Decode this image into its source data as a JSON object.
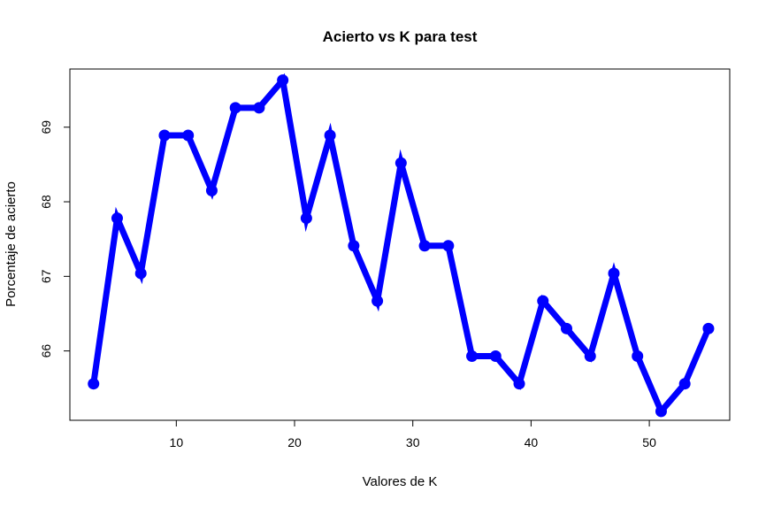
{
  "chart_data": {
    "type": "line",
    "title": "Acierto vs K para test",
    "xlabel": "Valores de K",
    "ylabel": "Porcentaje de acierto",
    "xlim": [
      1,
      56.8
    ],
    "ylim": [
      65.07,
      69.78
    ],
    "x_ticks": [
      10,
      20,
      30,
      40,
      50
    ],
    "y_ticks": [
      66,
      67,
      68,
      69
    ],
    "grid": false,
    "series": [
      {
        "color": "#0000ff",
        "x": [
          3,
          5,
          7,
          9,
          11,
          13,
          15,
          17,
          19,
          21,
          23,
          25,
          27,
          29,
          31,
          33,
          35,
          37,
          39,
          41,
          43,
          45,
          47,
          49,
          51,
          53,
          55
        ],
        "y": [
          65.56,
          67.78,
          67.04,
          68.89,
          68.89,
          68.15,
          69.26,
          69.26,
          69.63,
          67.78,
          68.89,
          67.41,
          66.67,
          68.52,
          67.41,
          67.41,
          65.93,
          65.93,
          65.56,
          66.67,
          66.3,
          65.93,
          67.04,
          65.93,
          65.19,
          65.56,
          66.3
        ]
      }
    ]
  }
}
